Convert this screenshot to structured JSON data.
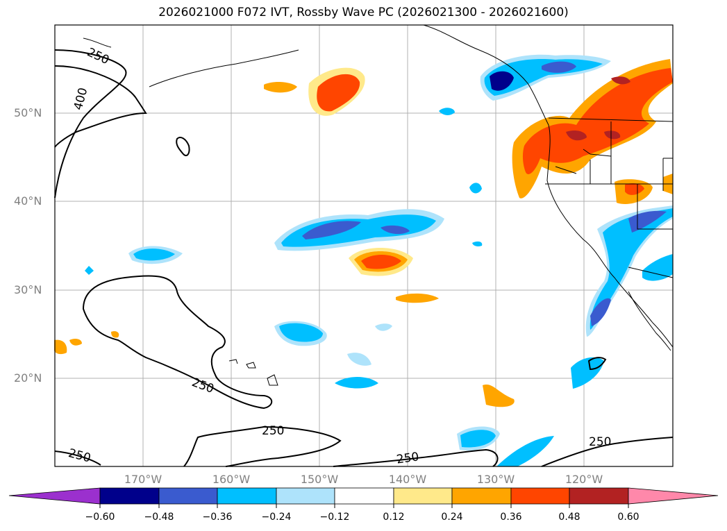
{
  "title": "2026021000 F072 IVT, Rossby Wave PC (2026021300 - 2026021600)",
  "map": {
    "lat_labels": [
      "50°N",
      "40°N",
      "30°N",
      "20°N"
    ],
    "lon_labels": [
      "170°W",
      "160°W",
      "150°W",
      "140°W",
      "130°W",
      "120°W"
    ],
    "contour_level": "250",
    "contour_label_400": "400"
  },
  "colorbar": {
    "ticks": [
      "−0.60",
      "−0.48",
      "−0.36",
      "−0.24",
      "−0.12",
      "0.12",
      "0.24",
      "0.36",
      "0.48",
      "0.60"
    ],
    "colors": [
      "#9b30ce",
      "#00008b",
      "#3a5bcf",
      "#00bfff",
      "#aee3fb",
      "#ffffff",
      "#ffe98a",
      "#ffa500",
      "#ff4500",
      "#b22222",
      "#ff88aa"
    ]
  }
}
